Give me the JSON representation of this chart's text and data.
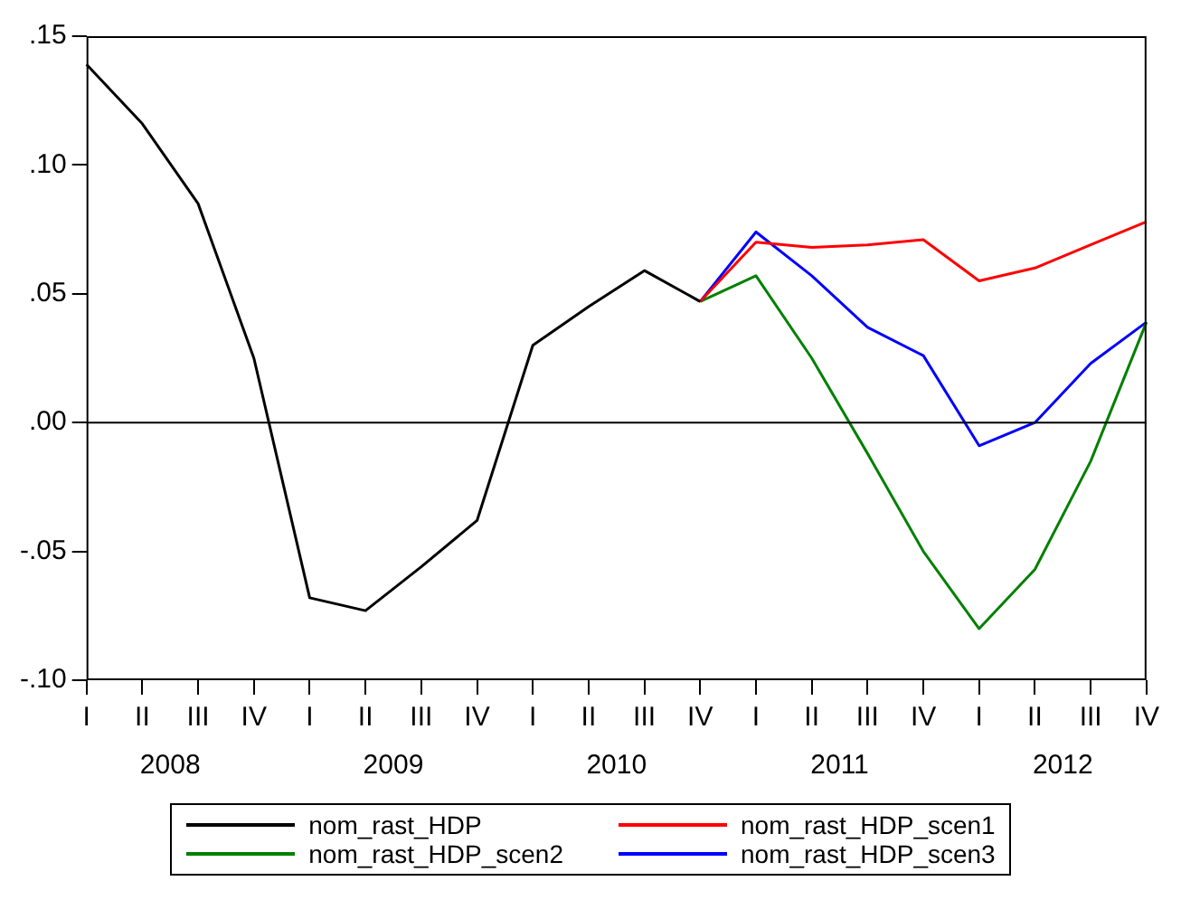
{
  "chart_data": {
    "type": "line",
    "categories": [
      "I",
      "II",
      "III",
      "IV",
      "I",
      "II",
      "III",
      "IV",
      "I",
      "II",
      "III",
      "IV",
      "I",
      "II",
      "III",
      "IV",
      "I",
      "II",
      "III",
      "IV"
    ],
    "series": [
      {
        "name": "nom_rast_HDP",
        "color": "#000000",
        "values": [
          0.139,
          0.116,
          0.085,
          0.025,
          -0.068,
          -0.073,
          -0.056,
          -0.038,
          0.03,
          0.045,
          0.059,
          0.047,
          null,
          null,
          null,
          null,
          null,
          null,
          null,
          null
        ]
      },
      {
        "name": "nom_rast_HDP_scen1",
        "color": "#ff0000",
        "values": [
          null,
          null,
          null,
          null,
          null,
          null,
          null,
          null,
          null,
          null,
          null,
          0.047,
          0.07,
          0.068,
          0.069,
          0.071,
          0.055,
          0.06,
          0.069,
          0.078
        ]
      },
      {
        "name": "nom_rast_HDP_scen2",
        "color": "#008000",
        "values": [
          null,
          null,
          null,
          null,
          null,
          null,
          null,
          null,
          null,
          null,
          null,
          0.047,
          0.057,
          0.025,
          -0.012,
          -0.05,
          -0.08,
          -0.057,
          -0.015,
          0.039
        ]
      },
      {
        "name": "nom_rast_HDP_scen3",
        "color": "#0000ff",
        "values": [
          null,
          null,
          null,
          null,
          null,
          null,
          null,
          null,
          null,
          null,
          null,
          0.047,
          0.074,
          0.057,
          0.037,
          0.026,
          -0.009,
          0.0,
          0.023,
          0.039
        ]
      }
    ],
    "ylim": [
      -0.1,
      0.15
    ],
    "yticks": [
      {
        "value": -0.1,
        "label": "-.10"
      },
      {
        "value": -0.05,
        "label": "-.05"
      },
      {
        "value": 0,
        "label": ".00"
      },
      {
        "value": 0.05,
        "label": ".05"
      },
      {
        "value": 0.1,
        "label": ".10"
      },
      {
        "value": 0.15,
        "label": ".15"
      }
    ],
    "ref_lines": [
      {
        "axis": "y",
        "value": 0,
        "color": "#000000"
      }
    ],
    "annotations": [
      "2008",
      "2009",
      "2010",
      "2011",
      "2012"
    ],
    "grid": false,
    "legend": "bottom",
    "marker": "none",
    "line_style": "solid"
  }
}
